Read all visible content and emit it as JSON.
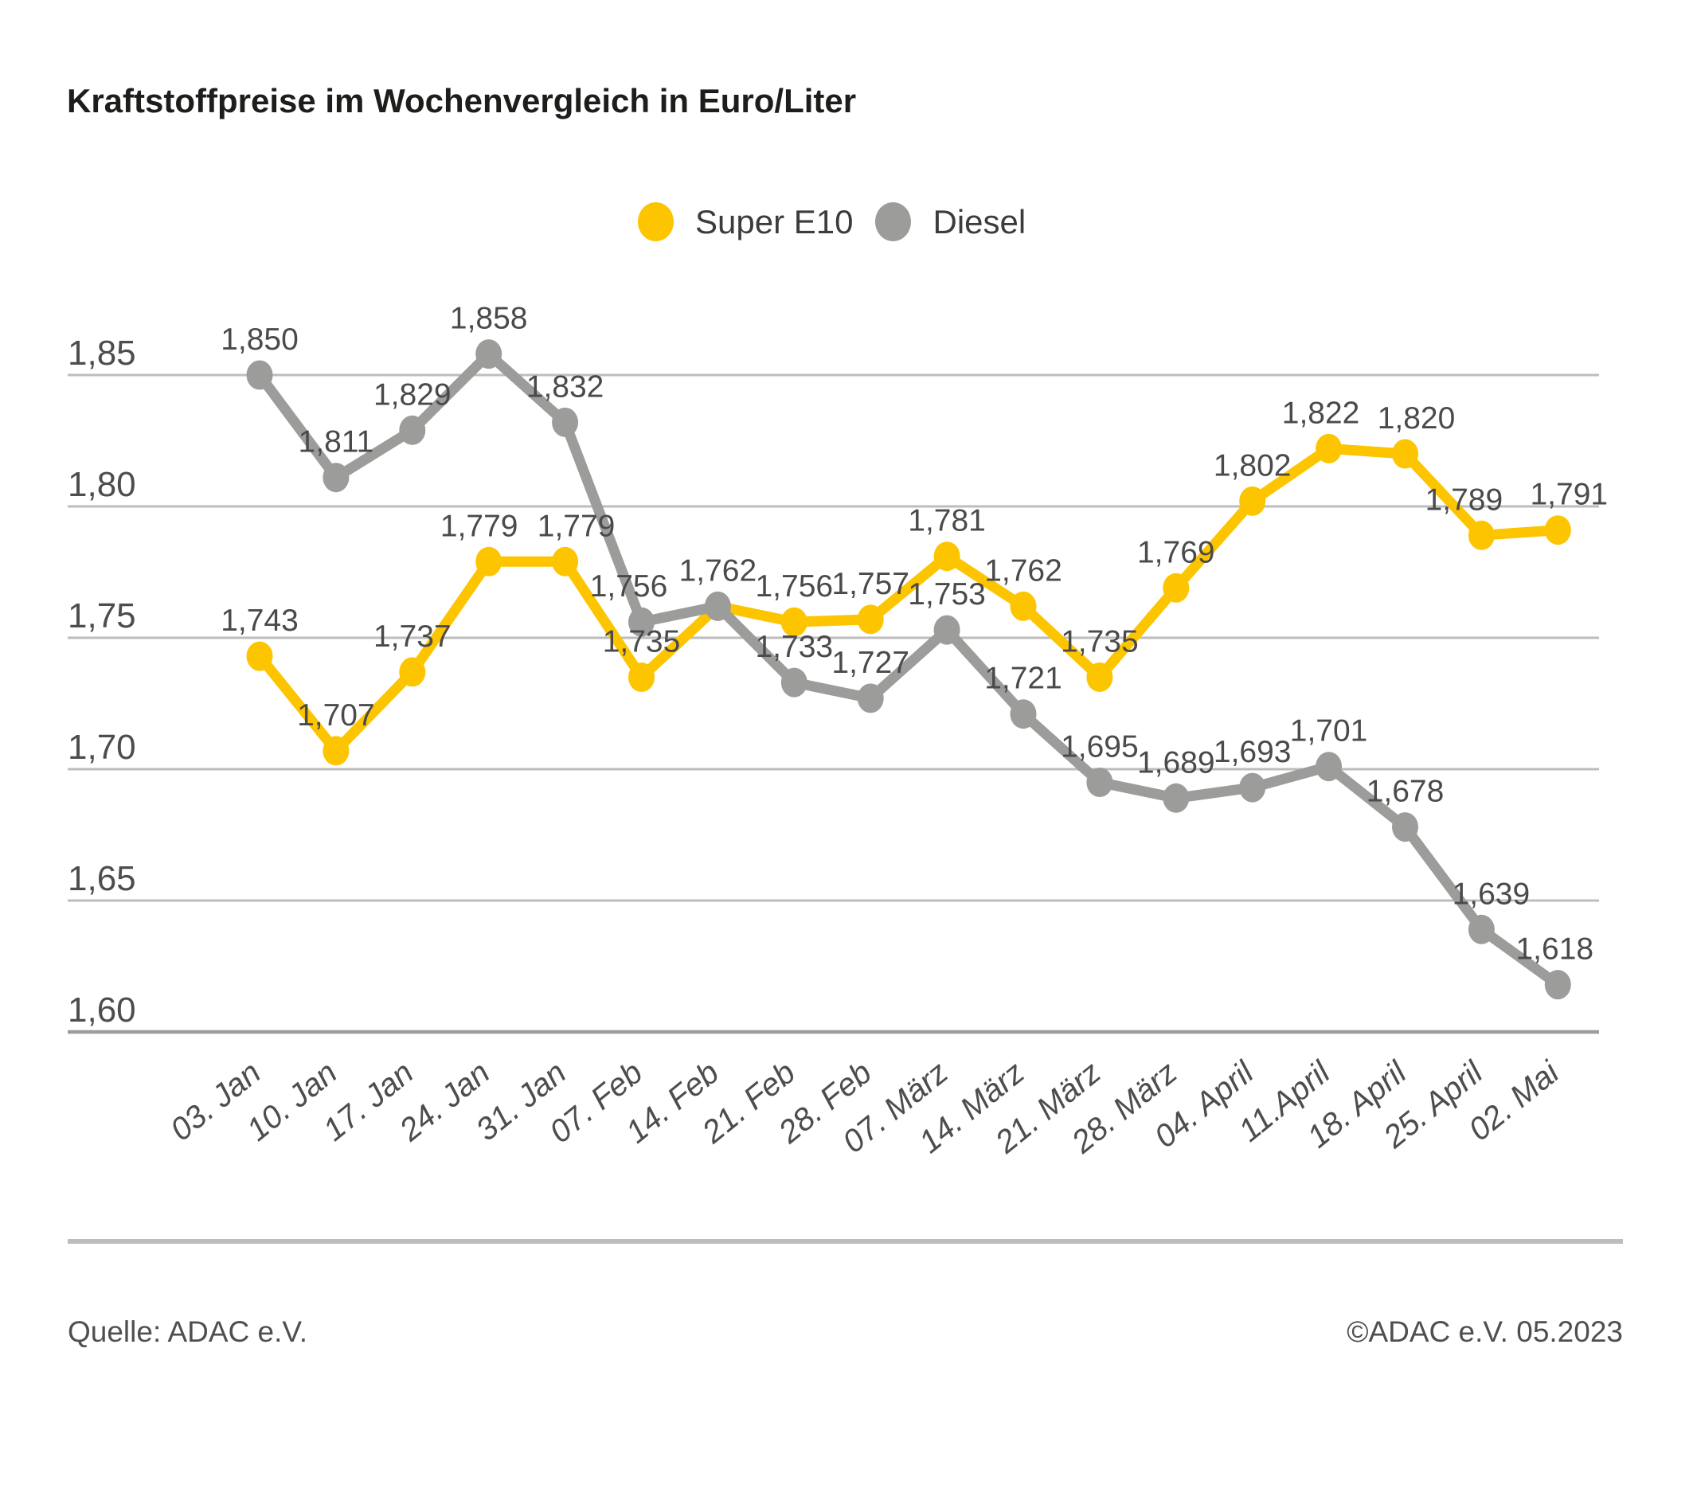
{
  "title": "Kraftstoffpreise im Wochenvergleich in Euro/Liter",
  "chart_data": {
    "type": "line",
    "title": "Kraftstoffpreise im Wochenvergleich in Euro/Liter",
    "categories": [
      "03. Jan",
      "10. Jan",
      "17. Jan",
      "24. Jan",
      "31. Jan",
      "07. Feb",
      "14. Feb",
      "21. Feb",
      "28. Feb",
      "07. März",
      "14. März",
      "21. März",
      "28. März",
      "04. April",
      "11.April",
      "18. April",
      "25. April",
      "02. Mai"
    ],
    "series": [
      {
        "name": "Super E10",
        "color": "#FDC500",
        "values": [
          1.743,
          1.707,
          1.737,
          1.779,
          1.779,
          1.735,
          1.762,
          1.756,
          1.757,
          1.781,
          1.762,
          1.735,
          1.769,
          1.802,
          1.822,
          1.82,
          1.789,
          1.791
        ]
      },
      {
        "name": "Diesel",
        "color": "#9C9C9B",
        "values": [
          1.85,
          1.811,
          1.829,
          1.858,
          1.832,
          1.756,
          1.762,
          1.733,
          1.727,
          1.753,
          1.721,
          1.695,
          1.689,
          1.693,
          1.701,
          1.678,
          1.639,
          1.618
        ]
      }
    ],
    "xlabel": "",
    "ylabel": "Euro/Liter",
    "ylim": [
      1.6,
      1.85
    ],
    "yticks": [
      1.85,
      1.8,
      1.75,
      1.7,
      1.65,
      1.6
    ],
    "decimal_separator": ",",
    "grid": true,
    "legend_position": "top-center",
    "value_labels": true,
    "colors": {
      "gridline": "#bdbdbd",
      "baseline": "#9c9c9c",
      "tick_text": "#4d4d4d",
      "value_label_text": "#4a4a4a"
    }
  },
  "footer": {
    "source": "Quelle: ADAC e.V.",
    "copyright": "©ADAC e.V. 05.2023"
  }
}
